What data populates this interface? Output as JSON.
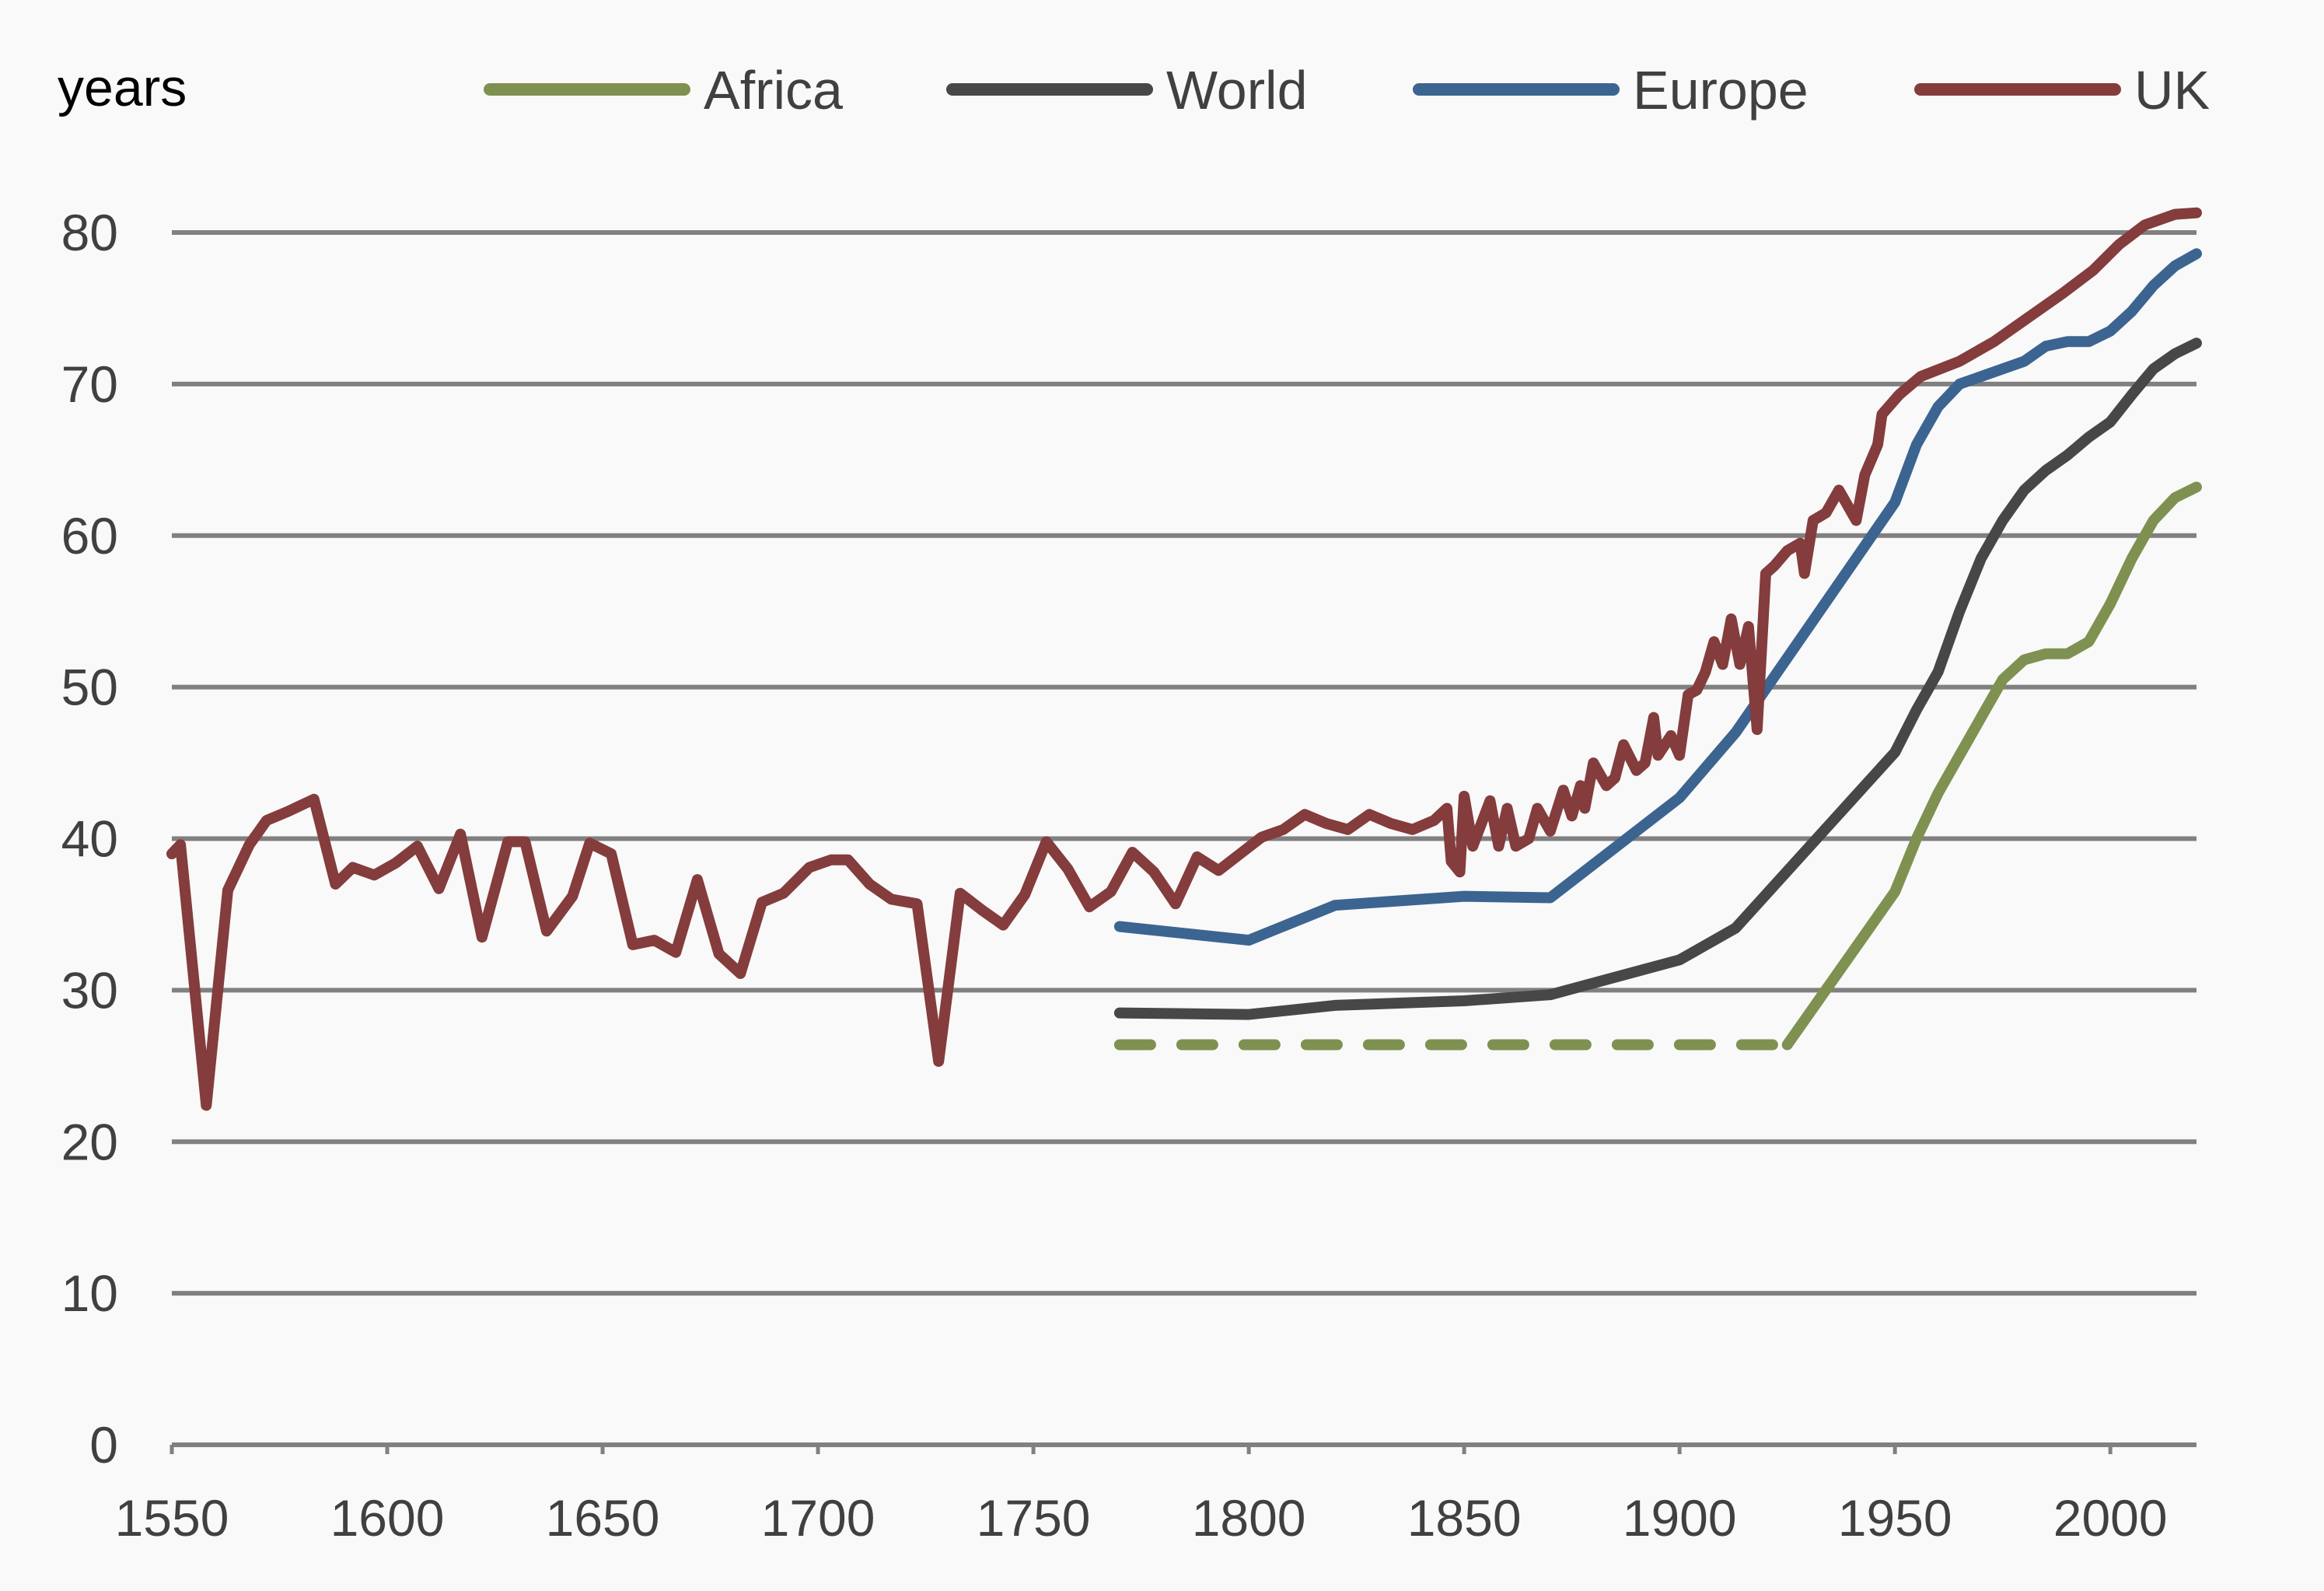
{
  "chart_data": {
    "type": "line",
    "title": "",
    "ylabel": "years",
    "xlabel": "",
    "xlim": [
      1550,
      2020
    ],
    "ylim": [
      0,
      80
    ],
    "grid": true,
    "legend_position": "top",
    "x_ticks": [
      "1550",
      "1600",
      "1650",
      "1700",
      "1750",
      "1800",
      "1850",
      "1900",
      "1950",
      "2000"
    ],
    "y_ticks": [
      "0",
      "10",
      "20",
      "30",
      "40",
      "50",
      "60",
      "70",
      "80"
    ],
    "colors": {
      "Africa": "#7f9150",
      "World": "#474747",
      "Europe": "#3c6491",
      "UK": "#843c3c",
      "grid": "#808080"
    },
    "series": [
      {
        "name": "Africa",
        "segments": [
          {
            "style": "dashed",
            "points": [
              [
                1770,
                26.4
              ],
              [
                1925,
                26.4
              ]
            ]
          },
          {
            "style": "solid",
            "points": [
              [
                1925,
                26.4
              ],
              [
                1950,
                36.5
              ],
              [
                1955,
                40
              ],
              [
                1960,
                43
              ],
              [
                1965,
                45.5
              ],
              [
                1970,
                48
              ],
              [
                1975,
                50.5
              ],
              [
                1980,
                51.8
              ],
              [
                1985,
                52.2
              ],
              [
                1990,
                52.2
              ],
              [
                1995,
                53
              ],
              [
                2000,
                55.5
              ],
              [
                2005,
                58.5
              ],
              [
                2010,
                61
              ],
              [
                2015,
                62.5
              ],
              [
                2020,
                63.2
              ]
            ]
          }
        ]
      },
      {
        "name": "World",
        "segments": [
          {
            "style": "solid",
            "points": [
              [
                1770,
                28.5
              ],
              [
                1800,
                28.4
              ],
              [
                1820,
                29
              ],
              [
                1850,
                29.3
              ],
              [
                1870,
                29.7
              ],
              [
                1900,
                32
              ],
              [
                1913,
                34.1
              ],
              [
                1950,
                45.7
              ],
              [
                1955,
                48.5
              ],
              [
                1960,
                51
              ],
              [
                1965,
                55
              ],
              [
                1970,
                58.5
              ],
              [
                1975,
                61
              ],
              [
                1980,
                63
              ],
              [
                1985,
                64.3
              ],
              [
                1990,
                65.3
              ],
              [
                1995,
                66.5
              ],
              [
                2000,
                67.5
              ],
              [
                2005,
                69.3
              ],
              [
                2010,
                71
              ],
              [
                2015,
                72
              ],
              [
                2020,
                72.7
              ]
            ]
          }
        ]
      },
      {
        "name": "Europe",
        "segments": [
          {
            "style": "solid",
            "points": [
              [
                1770,
                34.2
              ],
              [
                1800,
                33.3
              ],
              [
                1820,
                35.6
              ],
              [
                1850,
                36.2
              ],
              [
                1870,
                36.1
              ],
              [
                1900,
                42.7
              ],
              [
                1913,
                47
              ],
              [
                1950,
                62.2
              ],
              [
                1955,
                66
              ],
              [
                1960,
                68.5
              ],
              [
                1965,
                70
              ],
              [
                1975,
                71
              ],
              [
                1980,
                71.5
              ],
              [
                1985,
                72.5
              ],
              [
                1990,
                72.8
              ],
              [
                1995,
                72.8
              ],
              [
                2000,
                73.5
              ],
              [
                2005,
                74.8
              ],
              [
                2010,
                76.5
              ],
              [
                2015,
                77.8
              ],
              [
                2020,
                78.6
              ]
            ]
          }
        ]
      },
      {
        "name": "UK",
        "segments": [
          {
            "style": "solid",
            "points": [
              [
                1550,
                39
              ],
              [
                1552,
                39.6
              ],
              [
                1558,
                22.4
              ],
              [
                1563,
                36.6
              ],
              [
                1568,
                39.6
              ],
              [
                1572,
                41.2
              ],
              [
                1577,
                41.8
              ],
              [
                1583,
                42.6
              ],
              [
                1588,
                37
              ],
              [
                1592,
                38.1
              ],
              [
                1597,
                37.6
              ],
              [
                1602,
                38.4
              ],
              [
                1607,
                39.5
              ],
              [
                1612,
                36.7
              ],
              [
                1617,
                40.3
              ],
              [
                1622,
                33.5
              ],
              [
                1628,
                39.8
              ],
              [
                1632,
                39.8
              ],
              [
                1637,
                33.9
              ],
              [
                1643,
                36.2
              ],
              [
                1647,
                39.7
              ],
              [
                1652,
                39
              ],
              [
                1657,
                33
              ],
              [
                1662,
                33.3
              ],
              [
                1667,
                32.5
              ],
              [
                1672,
                37.3
              ],
              [
                1677,
                32.4
              ],
              [
                1682,
                31.1
              ],
              [
                1687,
                35.8
              ],
              [
                1692,
                36.4
              ],
              [
                1698,
                38.1
              ],
              [
                1703,
                38.6
              ],
              [
                1707,
                38.6
              ],
              [
                1712,
                37
              ],
              [
                1717,
                36
              ],
              [
                1723,
                35.7
              ],
              [
                1728,
                25.3
              ],
              [
                1733,
                36.4
              ],
              [
                1738,
                35.3
              ],
              [
                1743,
                34.3
              ],
              [
                1748,
                36.3
              ],
              [
                1753,
                39.8
              ],
              [
                1758,
                38
              ],
              [
                1763,
                35.5
              ],
              [
                1768,
                36.5
              ],
              [
                1773,
                39.1
              ],
              [
                1778,
                37.8
              ],
              [
                1783,
                35.7
              ],
              [
                1788,
                38.8
              ],
              [
                1793,
                37.9
              ],
              [
                1798,
                39
              ],
              [
                1803,
                40.1
              ],
              [
                1808,
                40.6
              ],
              [
                1813,
                41.6
              ],
              [
                1818,
                41
              ],
              [
                1823,
                40.6
              ],
              [
                1828,
                41.6
              ],
              [
                1833,
                41
              ],
              [
                1838,
                40.6
              ],
              [
                1843,
                41.2
              ],
              [
                1846,
                42
              ],
              [
                1847,
                38.5
              ],
              [
                1849,
                37.8
              ],
              [
                1850,
                42.8
              ],
              [
                1852,
                39.5
              ],
              [
                1856,
                42.5
              ],
              [
                1858,
                39.5
              ],
              [
                1860,
                42
              ],
              [
                1862,
                39.5
              ],
              [
                1865,
                40
              ],
              [
                1867,
                42
              ],
              [
                1870,
                40.5
              ],
              [
                1873,
                43.2
              ],
              [
                1875,
                41.5
              ],
              [
                1877,
                43.5
              ],
              [
                1878,
                42
              ],
              [
                1880,
                45
              ],
              [
                1883,
                43.5
              ],
              [
                1885,
                44
              ],
              [
                1887,
                46.2
              ],
              [
                1890,
                44.5
              ],
              [
                1892,
                45
              ],
              [
                1894,
                48
              ],
              [
                1895,
                45.5
              ],
              [
                1898,
                46.8
              ],
              [
                1900,
                45.5
              ],
              [
                1902,
                49.5
              ],
              [
                1904,
                49.8
              ],
              [
                1906,
                51
              ],
              [
                1908,
                53
              ],
              [
                1910,
                51.5
              ],
              [
                1912,
                54.5
              ],
              [
                1914,
                51.5
              ],
              [
                1916,
                54
              ],
              [
                1918,
                47.2
              ],
              [
                1920,
                57.5
              ],
              [
                1922,
                58
              ],
              [
                1925,
                59
              ],
              [
                1928,
                59.5
              ],
              [
                1929,
                57.5
              ],
              [
                1931,
                61
              ],
              [
                1934,
                61.5
              ],
              [
                1937,
                63
              ],
              [
                1941,
                61
              ],
              [
                1943,
                64
              ],
              [
                1946,
                66
              ],
              [
                1947,
                68
              ],
              [
                1951,
                69.3
              ],
              [
                1956,
                70.5
              ],
              [
                1965,
                71.5
              ],
              [
                1973,
                72.8
              ],
              [
                1980,
                74.2
              ],
              [
                1989,
                76
              ],
              [
                1996,
                77.5
              ],
              [
                2002,
                79.2
              ],
              [
                2008,
                80.5
              ],
              [
                2015,
                81.2
              ],
              [
                2020,
                81.3
              ]
            ]
          }
        ]
      }
    ]
  }
}
